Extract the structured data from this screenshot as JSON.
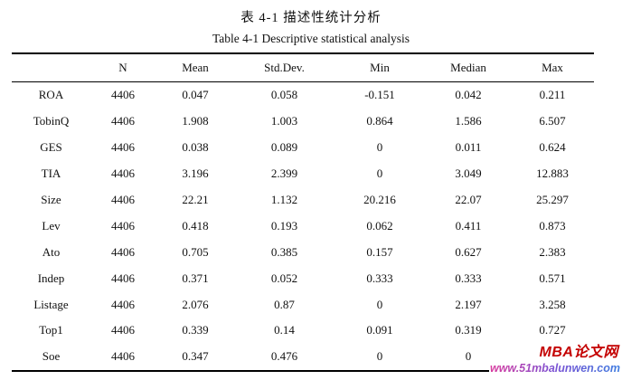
{
  "page": {
    "title_zh": "表 4-1  描述性统计分析",
    "title_en": "Table 4-1 Descriptive statistical analysis"
  },
  "table": {
    "columns": [
      "",
      "N",
      "Mean",
      "Std.Dev.",
      "Min",
      "Median",
      "Max"
    ],
    "rows": [
      {
        "label": "ROA",
        "n": "4406",
        "mean": "0.047",
        "std": "0.058",
        "min": "-0.151",
        "median": "0.042",
        "max": "0.211"
      },
      {
        "label": "TobinQ",
        "n": "4406",
        "mean": "1.908",
        "std": "1.003",
        "min": "0.864",
        "median": "1.586",
        "max": "6.507"
      },
      {
        "label": "GES",
        "n": "4406",
        "mean": "0.038",
        "std": "0.089",
        "min": "0",
        "median": "0.011",
        "max": "0.624"
      },
      {
        "label": "TIA",
        "n": "4406",
        "mean": "3.196",
        "std": "2.399",
        "min": "0",
        "median": "3.049",
        "max": "12.883"
      },
      {
        "label": "Size",
        "n": "4406",
        "mean": "22.21",
        "std": "1.132",
        "min": "20.216",
        "median": "22.07",
        "max": "25.297"
      },
      {
        "label": "Lev",
        "n": "4406",
        "mean": "0.418",
        "std": "0.193",
        "min": "0.062",
        "median": "0.411",
        "max": "0.873"
      },
      {
        "label": "Ato",
        "n": "4406",
        "mean": "0.705",
        "std": "0.385",
        "min": "0.157",
        "median": "0.627",
        "max": "2.383"
      },
      {
        "label": "Indep",
        "n": "4406",
        "mean": "0.371",
        "std": "0.052",
        "min": "0.333",
        "median": "0.333",
        "max": "0.571"
      },
      {
        "label": "Listage",
        "n": "4406",
        "mean": "2.076",
        "std": "0.87",
        "min": "0",
        "median": "2.197",
        "max": "3.258"
      },
      {
        "label": "Top1",
        "n": "4406",
        "mean": "0.339",
        "std": "0.14",
        "min": "0.091",
        "median": "0.319",
        "max": "0.727"
      },
      {
        "label": "Soe",
        "n": "4406",
        "mean": "0.347",
        "std": "0.476",
        "min": "0",
        "median": "0",
        "max": ""
      }
    ]
  },
  "watermark": {
    "site_name": "MBA论文网",
    "site_url": "www.51mbalunwen.com",
    "name_color": "#c40000",
    "url_gradient_start": "#d93b9e",
    "url_gradient_mid": "#7a52d4",
    "url_gradient_end": "#3f7de0"
  }
}
